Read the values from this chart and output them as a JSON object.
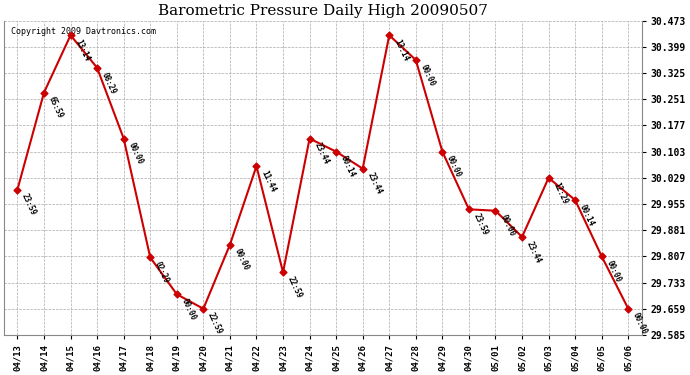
{
  "title": "Barometric Pressure Daily High 20090507",
  "copyright": "Copyright 2009 Davtronics.com",
  "background_color": "#ffffff",
  "line_color": "#cc0000",
  "marker_color": "#cc0000",
  "grid_color": "#aaaaaa",
  "ylim": [
    29.585,
    30.473
  ],
  "yticks": [
    29.585,
    29.659,
    29.733,
    29.807,
    29.881,
    29.955,
    30.029,
    30.103,
    30.177,
    30.251,
    30.325,
    30.399,
    30.473
  ],
  "points": [
    {
      "date": "04/13",
      "value": 29.996,
      "label": "23:59"
    },
    {
      "date": "04/14",
      "value": 30.27,
      "label": "65:59"
    },
    {
      "date": "04/15",
      "value": 30.432,
      "label": "13:14"
    },
    {
      "date": "04/16",
      "value": 30.34,
      "label": "08:29"
    },
    {
      "date": "04/17",
      "value": 30.14,
      "label": "00:00"
    },
    {
      "date": "04/18",
      "value": 29.804,
      "label": "02:29"
    },
    {
      "date": "04/19",
      "value": 29.7,
      "label": "00:00"
    },
    {
      "date": "04/20",
      "value": 29.659,
      "label": "22:59"
    },
    {
      "date": "04/21",
      "value": 29.84,
      "label": "00:00"
    },
    {
      "date": "04/22",
      "value": 30.062,
      "label": "11:44"
    },
    {
      "date": "04/23",
      "value": 29.762,
      "label": "22:59"
    },
    {
      "date": "04/24",
      "value": 30.14,
      "label": "23:44"
    },
    {
      "date": "04/25",
      "value": 30.103,
      "label": "00:14"
    },
    {
      "date": "04/26",
      "value": 30.055,
      "label": "23:44"
    },
    {
      "date": "04/27",
      "value": 30.432,
      "label": "13:14"
    },
    {
      "date": "04/28",
      "value": 30.362,
      "label": "00:00"
    },
    {
      "date": "04/29",
      "value": 30.103,
      "label": "00:00"
    },
    {
      "date": "04/30",
      "value": 29.94,
      "label": "23:59"
    },
    {
      "date": "05/01",
      "value": 29.936,
      "label": "00:00"
    },
    {
      "date": "05/02",
      "value": 29.862,
      "label": "23:44"
    },
    {
      "date": "05/03",
      "value": 30.029,
      "label": "12:29"
    },
    {
      "date": "05/04",
      "value": 29.966,
      "label": "00:14"
    },
    {
      "date": "05/05",
      "value": 29.807,
      "label": "00:00"
    },
    {
      "date": "05/06",
      "value": 29.659,
      "label": "00:00"
    }
  ]
}
